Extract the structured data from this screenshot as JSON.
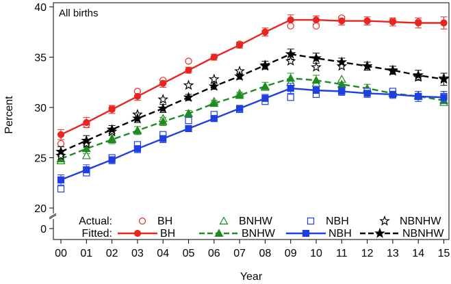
{
  "chart_data": {
    "type": "line",
    "title": "All births",
    "xlabel": "Year",
    "ylabel": "Percent",
    "categories": [
      "00",
      "01",
      "02",
      "03",
      "04",
      "05",
      "06",
      "07",
      "08",
      "09",
      "10",
      "11",
      "12",
      "13",
      "14",
      "15"
    ],
    "y_ticks": [
      "20",
      "25",
      "30",
      "35",
      "40"
    ],
    "y_break_tick": "0",
    "ylim": [
      20,
      40
    ],
    "legend": {
      "position": "bottom-inside",
      "actual_label": "Actual:",
      "fitted_label": "Fitted:"
    },
    "series": [
      {
        "name": "BH",
        "color": "#e8251f",
        "marker_actual": "open-circle",
        "marker_fitted": "filled-circle",
        "dash": "solid",
        "actual": [
          26.4,
          28.3,
          29.9,
          31.6,
          32.7,
          34.6,
          35.0,
          36.3,
          37.5,
          38.1,
          38.1,
          38.9,
          38.6,
          38.6,
          38.5,
          38.4
        ],
        "fitted": [
          27.3,
          28.5,
          29.8,
          31.1,
          32.4,
          33.7,
          35.0,
          36.2,
          37.5,
          38.7,
          38.7,
          38.6,
          38.6,
          38.5,
          38.4,
          38.4
        ],
        "err": [
          0.5,
          0.5,
          0.4,
          0.4,
          0.4,
          0.3,
          0.3,
          0.3,
          0.4,
          0.5,
          0.4,
          0.4,
          0.4,
          0.4,
          0.5,
          0.6
        ]
      },
      {
        "name": "BNHW",
        "color": "#1f8a1f",
        "marker_actual": "open-triangle",
        "marker_fitted": "filled-triangle",
        "dash": "dashed",
        "actual": [
          24.7,
          25.2,
          26.9,
          27.7,
          28.9,
          29.4,
          30.6,
          31.4,
          32.0,
          32.5,
          32.4,
          32.8,
          31.8,
          31.4,
          31.2,
          30.5
        ],
        "fitted": [
          24.9,
          25.9,
          26.8,
          27.7,
          28.6,
          29.4,
          30.4,
          31.2,
          32.1,
          32.9,
          32.7,
          32.3,
          31.9,
          31.4,
          31.1,
          30.7
        ],
        "err": [
          0.5,
          0.5,
          0.4,
          0.4,
          0.4,
          0.3,
          0.3,
          0.3,
          0.4,
          0.5,
          0.5,
          0.4,
          0.4,
          0.4,
          0.5,
          0.5
        ]
      },
      {
        "name": "NBH",
        "color": "#1f3fe0",
        "marker_actual": "open-square",
        "marker_fitted": "filled-square",
        "dash": "solid",
        "actual": [
          21.9,
          23.5,
          25.0,
          26.3,
          27.3,
          28.7,
          29.3,
          29.8,
          30.6,
          31.0,
          31.3,
          31.6,
          31.6,
          31.6,
          31.1,
          31.1
        ],
        "fitted": [
          22.8,
          23.8,
          24.8,
          25.9,
          26.9,
          27.9,
          28.9,
          29.9,
          30.9,
          31.9,
          31.7,
          31.6,
          31.4,
          31.3,
          31.1,
          31.0
        ],
        "err": [
          0.5,
          0.5,
          0.4,
          0.4,
          0.4,
          0.3,
          0.3,
          0.3,
          0.4,
          0.5,
          0.4,
          0.4,
          0.4,
          0.4,
          0.5,
          0.6
        ]
      },
      {
        "name": "NBNHW",
        "color": "#000000",
        "marker_actual": "open-star",
        "marker_fitted": "filled-star",
        "dash": "dashed",
        "actual": [
          25.2,
          26.4,
          27.6,
          29.3,
          30.8,
          32.2,
          32.8,
          33.6,
          34.1,
          34.6,
          34.0,
          34.1,
          34.1,
          33.6,
          33.0,
          32.9
        ],
        "fitted": [
          25.6,
          26.7,
          27.8,
          28.9,
          29.9,
          31.0,
          32.1,
          33.1,
          34.2,
          35.3,
          34.9,
          34.5,
          34.1,
          33.7,
          33.2,
          32.8
        ],
        "err": [
          0.5,
          0.5,
          0.4,
          0.4,
          0.4,
          0.3,
          0.3,
          0.3,
          0.4,
          0.5,
          0.5,
          0.4,
          0.4,
          0.4,
          0.5,
          0.6
        ]
      }
    ]
  }
}
